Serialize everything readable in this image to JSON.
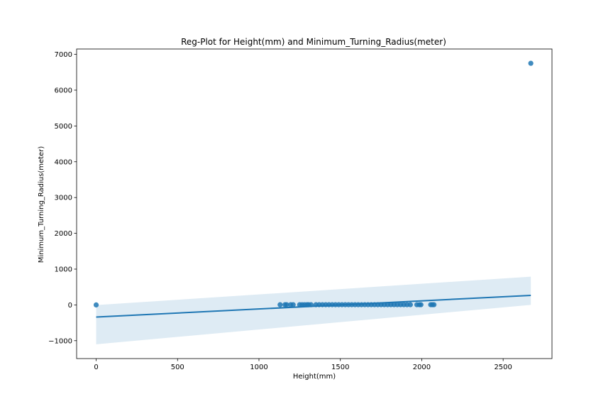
{
  "chart_data": {
    "type": "scatter",
    "title": "Reg-Plot for Height(mm) and Minimum_Turning_Radius(meter)",
    "xlabel": "Height(mm)",
    "ylabel": "Minimum_Turning_Radius(meter)",
    "xlim": [
      -120,
      2800
    ],
    "ylim": [
      -1500,
      7150
    ],
    "xticks": [
      0,
      500,
      1000,
      1500,
      2000,
      2500
    ],
    "yticks": [
      -1000,
      0,
      1000,
      2000,
      3000,
      4000,
      5000,
      6000,
      7000
    ],
    "grid": false,
    "colors": {
      "points": "#1f77b4",
      "line": "#1f77b4",
      "band": "#1f77b4"
    },
    "points": [
      {
        "x": 0,
        "y": 0
      },
      {
        "x": 1130,
        "y": 5
      },
      {
        "x": 1160,
        "y": 5
      },
      {
        "x": 1170,
        "y": 5
      },
      {
        "x": 1195,
        "y": 5
      },
      {
        "x": 1210,
        "y": 5
      },
      {
        "x": 1250,
        "y": 5
      },
      {
        "x": 1265,
        "y": 5
      },
      {
        "x": 1280,
        "y": 5
      },
      {
        "x": 1295,
        "y": 5
      },
      {
        "x": 1305,
        "y": 5
      },
      {
        "x": 1320,
        "y": 5
      },
      {
        "x": 1350,
        "y": 5
      },
      {
        "x": 1370,
        "y": 5
      },
      {
        "x": 1390,
        "y": 5
      },
      {
        "x": 1410,
        "y": 5
      },
      {
        "x": 1430,
        "y": 5
      },
      {
        "x": 1450,
        "y": 5
      },
      {
        "x": 1470,
        "y": 5
      },
      {
        "x": 1490,
        "y": 5
      },
      {
        "x": 1510,
        "y": 5
      },
      {
        "x": 1530,
        "y": 5
      },
      {
        "x": 1550,
        "y": 5
      },
      {
        "x": 1570,
        "y": 5
      },
      {
        "x": 1590,
        "y": 5
      },
      {
        "x": 1610,
        "y": 5
      },
      {
        "x": 1630,
        "y": 5
      },
      {
        "x": 1650,
        "y": 5
      },
      {
        "x": 1670,
        "y": 5
      },
      {
        "x": 1690,
        "y": 5
      },
      {
        "x": 1710,
        "y": 5
      },
      {
        "x": 1730,
        "y": 5
      },
      {
        "x": 1750,
        "y": 5
      },
      {
        "x": 1770,
        "y": 5
      },
      {
        "x": 1790,
        "y": 5
      },
      {
        "x": 1810,
        "y": 5
      },
      {
        "x": 1830,
        "y": 5
      },
      {
        "x": 1850,
        "y": 5
      },
      {
        "x": 1870,
        "y": 5
      },
      {
        "x": 1890,
        "y": 5
      },
      {
        "x": 1910,
        "y": 5
      },
      {
        "x": 1930,
        "y": 5
      },
      {
        "x": 1970,
        "y": 5
      },
      {
        "x": 1985,
        "y": 5
      },
      {
        "x": 1995,
        "y": 5
      },
      {
        "x": 2055,
        "y": 5
      },
      {
        "x": 2065,
        "y": 5
      },
      {
        "x": 2075,
        "y": 5
      },
      {
        "x": 2670,
        "y": 6750
      }
    ],
    "regression": {
      "x": [
        0,
        2670
      ],
      "y": [
        -340,
        265
      ],
      "ci_upper": [
        -5,
        790
      ],
      "ci_lower": [
        -1100,
        0
      ]
    }
  }
}
